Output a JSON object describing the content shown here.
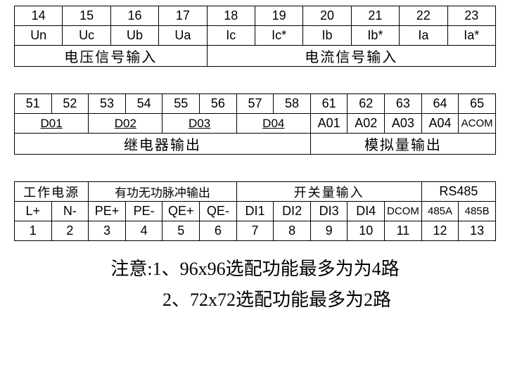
{
  "table1": {
    "row1": [
      "14",
      "15",
      "16",
      "17",
      "18",
      "19",
      "20",
      "21",
      "22",
      "23"
    ],
    "row2": [
      "Un",
      "Uc",
      "Ub",
      "Ua",
      "Ic",
      "Ic*",
      "Ib",
      "Ib*",
      "Ia",
      "Ia*"
    ],
    "row3_left": "电压信号输入",
    "row3_right": "电流信号输入"
  },
  "table2": {
    "row1": [
      "51",
      "52",
      "53",
      "54",
      "55",
      "56",
      "57",
      "58",
      "61",
      "62",
      "63",
      "64",
      "65"
    ],
    "d_labels": [
      "D01",
      "D02",
      "D03",
      "D04"
    ],
    "a_labels": [
      "A01",
      "A02",
      "A03",
      "A04",
      "ACOM"
    ],
    "row3_left": "继电器输出",
    "row3_right": "模拟量输出"
  },
  "table3": {
    "header_groups": [
      "工作电源",
      "有功无功脉冲输出",
      "开关量输入",
      "RS485"
    ],
    "row2": [
      "L+",
      "N-",
      "PE+",
      "PE-",
      "QE+",
      "QE-",
      "DI1",
      "DI2",
      "DI3",
      "DI4",
      "DCOM",
      "485A",
      "485B"
    ],
    "row3": [
      "1",
      "2",
      "3",
      "4",
      "5",
      "6",
      "7",
      "8",
      "9",
      "10",
      "11",
      "12",
      "13"
    ]
  },
  "notes": {
    "line1": "注意:1、96x96选配功能最多为为4路",
    "line2": "2、72x72选配功能最多为2路"
  },
  "style": {
    "border_color": "#000000",
    "background": "#ffffff",
    "cell_fontsize": 18,
    "cn_fontsize": 20,
    "note_fontsize": 26
  }
}
